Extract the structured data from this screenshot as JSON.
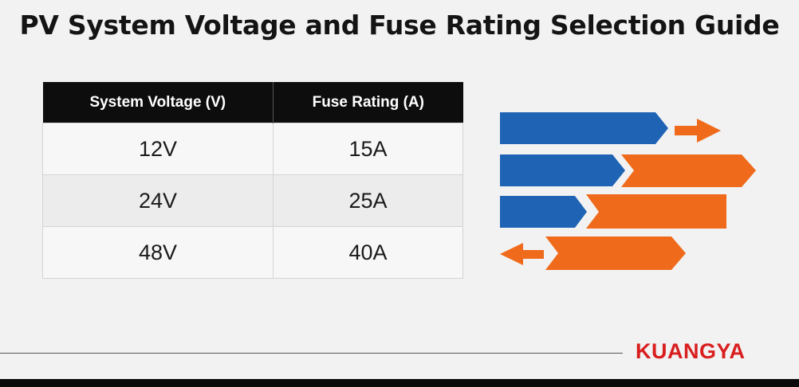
{
  "title": "PV System Voltage and Fuse Rating Selection Guide",
  "table": {
    "headers": [
      "System Voltage (V)",
      "Fuse Rating (A)"
    ],
    "rows": [
      [
        "12V",
        "15A"
      ],
      [
        "24V",
        "25A"
      ],
      [
        "48V",
        "40A"
      ]
    ]
  },
  "brand": "KUANGYA",
  "colors": {
    "blue": "#1f64b4",
    "orange": "#ef6a1a",
    "brand_red": "#d91e1e",
    "header_bg": "#0d0d0d"
  }
}
